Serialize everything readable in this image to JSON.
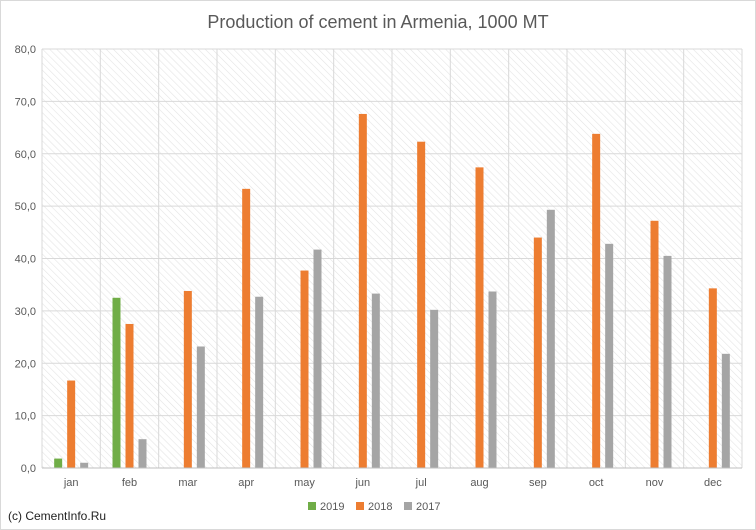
{
  "chart_data": {
    "type": "bar",
    "title": "Production of cement in Armenia, 1000 MT",
    "xlabel": "",
    "ylabel": "",
    "ylim": [
      0,
      80
    ],
    "yticks": [
      0,
      10,
      20,
      30,
      40,
      50,
      60,
      70,
      80
    ],
    "ytick_labels": [
      "0,0",
      "10,0",
      "20,0",
      "30,0",
      "40,0",
      "50,0",
      "60,0",
      "70,0",
      "80,0"
    ],
    "categories": [
      "jan",
      "feb",
      "mar",
      "apr",
      "may",
      "jun",
      "jul",
      "aug",
      "sep",
      "oct",
      "nov",
      "dec"
    ],
    "series": [
      {
        "name": "2019",
        "color": "#70ad47",
        "values": [
          1.8,
          32.5,
          null,
          null,
          null,
          null,
          null,
          null,
          null,
          null,
          null,
          null
        ]
      },
      {
        "name": "2018",
        "color": "#ed7d31",
        "values": [
          16.7,
          27.5,
          33.8,
          53.3,
          37.7,
          67.6,
          62.3,
          57.4,
          44.0,
          63.8,
          47.2,
          34.3
        ]
      },
      {
        "name": "2017",
        "color": "#a5a5a5",
        "values": [
          1.0,
          5.5,
          23.2,
          32.7,
          41.7,
          33.3,
          30.2,
          33.7,
          49.3,
          42.8,
          40.5,
          21.8
        ]
      }
    ],
    "grid": true,
    "legend_position": "bottom"
  },
  "source_note": "(c) CementInfo.Ru"
}
